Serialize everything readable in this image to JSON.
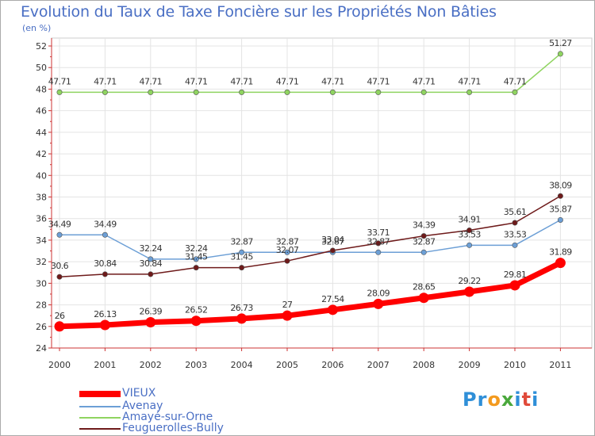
{
  "chart_data": {
    "type": "line",
    "title": "Evolution du Taux de Taxe Foncière sur les Propriétés Non Bâties",
    "subtitle": "(en %)",
    "xlabel": "",
    "ylabel": "",
    "ylim": [
      24,
      52
    ],
    "yticks": [
      "24",
      "26",
      "28",
      "30",
      "32",
      "34",
      "36",
      "38",
      "40",
      "42",
      "44",
      "46",
      "48",
      "50",
      "52"
    ],
    "grid": true,
    "legend_position": "bottom-left",
    "categories": [
      "2000",
      "2001",
      "2002",
      "2003",
      "2004",
      "2005",
      "2006",
      "2007",
      "2008",
      "2009",
      "2010",
      "2011"
    ],
    "series": [
      {
        "name": "VIEUX",
        "color": "#ff0000",
        "values": [
          26,
          26.13,
          26.39,
          26.52,
          26.73,
          27,
          27.54,
          28.09,
          28.65,
          29.22,
          29.81,
          31.89
        ],
        "labels": [
          "26",
          "26.13",
          "26.39",
          "26.52",
          "26.73",
          "27",
          "27.54",
          "28.09",
          "28.65",
          "29.22",
          "29.81",
          "31.89"
        ]
      },
      {
        "name": "Avenay",
        "color": "#6c9fd6",
        "values": [
          34.49,
          34.49,
          32.24,
          32.24,
          32.87,
          32.87,
          32.87,
          32.87,
          32.87,
          33.53,
          33.53,
          35.87
        ],
        "labels": [
          "34.49",
          "34.49",
          "32.24",
          "32.24",
          "32.87",
          "32.87",
          "32.87",
          "32.87",
          "32.87",
          "33.53",
          "33.53",
          "35.87"
        ]
      },
      {
        "name": "Amayé-sur-Orne",
        "color": "#8fd460",
        "values": [
          47.71,
          47.71,
          47.71,
          47.71,
          47.71,
          47.71,
          47.71,
          47.71,
          47.71,
          47.71,
          47.71,
          51.27
        ],
        "labels": [
          "47.71",
          "47.71",
          "47.71",
          "47.71",
          "47.71",
          "47.71",
          "47.71",
          "47.71",
          "47.71",
          "47.71",
          "47.71",
          "51.27"
        ]
      },
      {
        "name": "Feuguerolles-Bully",
        "color": "#6e1a1a",
        "values": [
          30.6,
          30.84,
          30.84,
          31.45,
          31.45,
          32.07,
          33.04,
          33.71,
          34.39,
          34.91,
          35.61,
          38.09
        ],
        "labels": [
          "30.6",
          "30.84",
          "30.84",
          "31.45",
          "31.45",
          "32.07",
          "33.04",
          "33.71",
          "34.39",
          "34.91",
          "35.61",
          "38.09"
        ]
      }
    ]
  },
  "brand": {
    "text": "Proxiti",
    "letters": [
      "P",
      "r",
      "o",
      "x",
      "i",
      "t",
      "i"
    ],
    "colors": [
      "#2f8fd8",
      "#2f8fd8",
      "#f39a1e",
      "#4aa83c",
      "#2f8fd8",
      "#e04a3a",
      "#2f8fd8"
    ]
  }
}
